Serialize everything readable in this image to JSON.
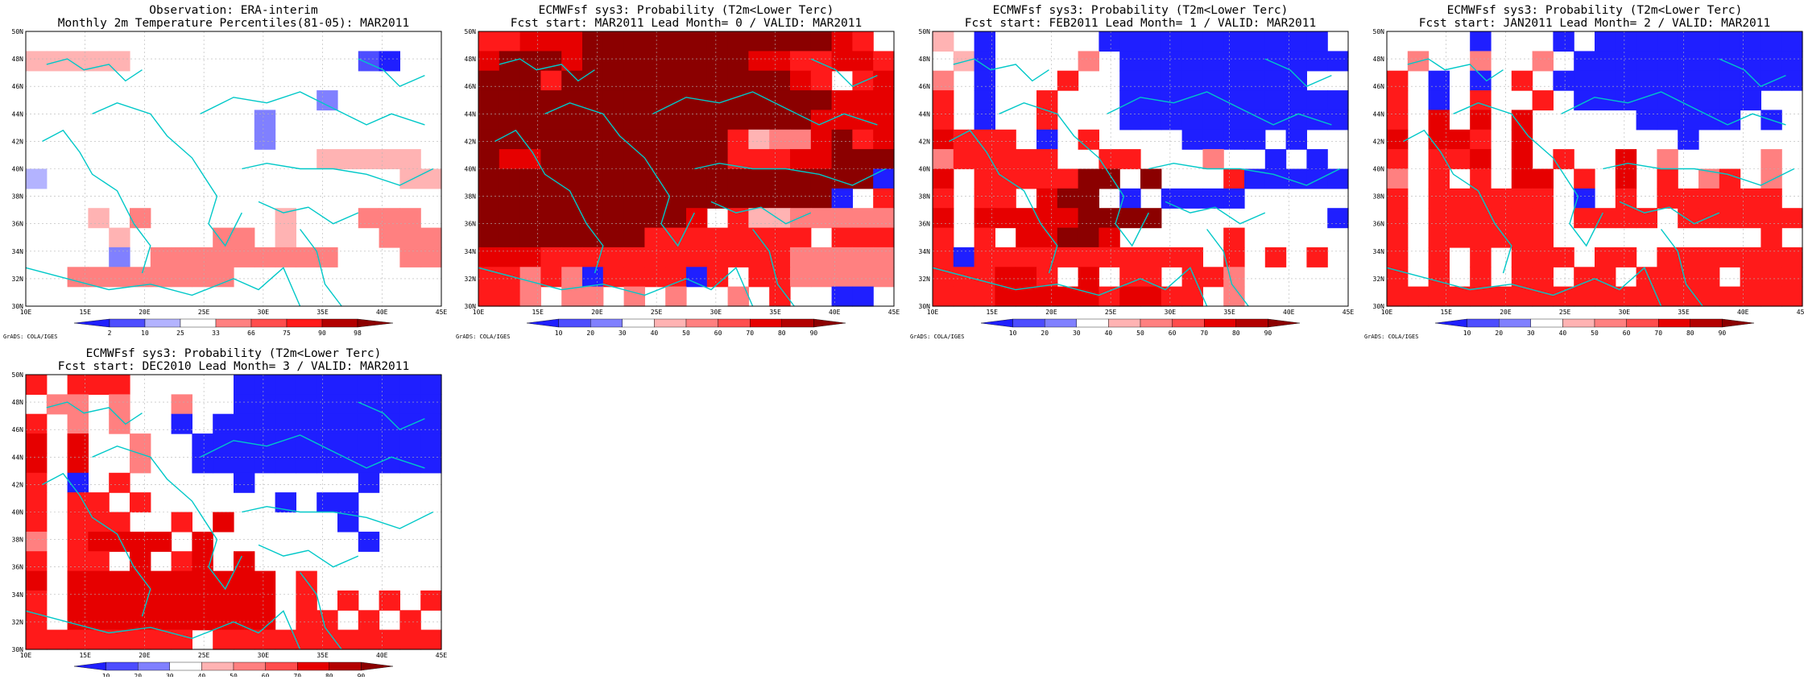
{
  "colors": {
    "palette": [
      "#1f1fff",
      "#4d4dff",
      "#8080ff",
      "#b3b3ff",
      "#ffffff",
      "#ffb3b3",
      "#ff8080",
      "#ff4d4d",
      "#ff1a1a",
      "#e60000",
      "#b30000",
      "#8b0000"
    ],
    "coast": "#00c8c8",
    "grid": "#b4b4b4"
  },
  "icon_names": [
    "coastline-map-icon"
  ],
  "footer_label": "GrADS: COLA/IGES",
  "lat_labels": [
    "30N",
    "32N",
    "34N",
    "36N",
    "38N",
    "40N",
    "42N",
    "44N",
    "46N",
    "48N",
    "50N"
  ],
  "lon_labels": [
    "10E",
    "15E",
    "20E",
    "25E",
    "30E",
    "35E",
    "40E",
    "45E"
  ],
  "colorbars": {
    "obs": [
      "2",
      "10",
      "25",
      "33",
      "66",
      "75",
      "90",
      "98"
    ],
    "prob": [
      "10",
      "20",
      "30",
      "40",
      "50",
      "60",
      "70",
      "80",
      "90"
    ]
  },
  "panels": [
    {
      "title_line1": "Observation: ERA-interim",
      "title_line2": "Monthly 2m Temperature Percentiles(81-05): MAR2011",
      "colorbar_key": "obs",
      "grid": [
        "....................",
        "55555...........21..",
        "......................",
        "..............3.....",
        "...........3........",
        "...........3........",
        "..............55555.",
        "4.................55",
        "......................",
        "...5.6......5...666.",
        "....5....66.5....666",
        "....3.666666666...66",
        "..66666666..........",
        "...................."
      ]
    },
    {
      "title_line1": "ECMWFsf sys3: Probability (T2m<Lower Terc)",
      "title_line2": "Fcst start: MAR2011  Lead Month= 0 / VALID: MAR2011",
      "colorbar_key": "prob",
      "grid": [
        "7788899999999999987.",
        "89998999999998877887",
        "99979999999999987.78",
        "99999999999999999888",
        "99999999999999998888",
        "99999999999975668978",
        "98899999999977788999",
        "99999999999999999991",
        "999999999999999991.7",
        "99999999998.75566666",
        "9999999977777777.777",
        "88877777777777766666",
        "776761777717.7766666",
        "776.66.6.6..6.7..11."
      ]
    },
    {
      "title_line1": "ECMWFsf sys3: Probability (T2m<Lower Terc)",
      "title_line2": "Fcst start: FEB2011  Lead Month= 1 / VALID: MAR2011",
      "colorbar_key": "prob",
      "grid": [
        "5.1.....11111111111.",
        ".51....6.11111111111",
        "6.1...7..111111111..",
        "7.1..7...11111111111",
        "7.1..7...11111111111",
        "8777.1.7....1111.1..",
        "677777..77...6..1.1.",
        "8.7777799.9...711111",
        "7.77.899.1.1111.....",
        "8.888889999........1",
        "7.7.88998.....7.....",
        "7177777777777.7.7.7.",
        "777887.8.77.776.....",
        "7778888878877.6....."
      ]
    },
    {
      "title_line1": "ECMWFsf sys3: Probability (T2m<Lower Terc)",
      "title_line2": "Fcst start: JAN2011  Lead Month= 2 / VALID: MAR2011",
      "colorbar_key": "prob",
      "grid": [
        "....1...1.1111111111",
        ".6..6..6.11111111111",
        "7.1.1.7.111111111111",
        "7.1.7..7.111111111..",
        "7.8.8.8.....11111.1.",
        "8.887.8.......1.....",
        "7.778.8.7..8.6....6.",
        "6.7.7.88.7.8.7.67.6.",
        "7.777777.1.7.777777.",
        "7.777777.7777.777777",
        "7.777777..........7.",
        "7.7.7.777.77.7777777",
        "7.7.7.77.77.7777.777",
        "77777777777777777777"
      ]
    },
    {
      "title_line1": "ECMWFsf sys3: Probability (T2m<Lower Terc)",
      "title_line2": "Fcst start: DEC2010  Lead Month= 3 / VALID: MAR2011",
      "colorbar_key": "prob",
      "grid": [
        "7.777.....1111111111",
        ".66.6..6..1111111111",
        "7.6.6..1.11111111111",
        "8.8..6..111111111111",
        "8.8..6..111111111111",
        "7.1.7.....1.....1...",
        "7.77.7......1.11....",
        "7.777..7.8.....1....",
        "6.78888.8.......1...",
        "7.77.8.78.8.........",
        "8.8888888888.7......",
        "7.8888888888.7.7.7.7",
        "7.8888888888.77.7.7.",
        "77777777.77777777777"
      ]
    }
  ]
}
